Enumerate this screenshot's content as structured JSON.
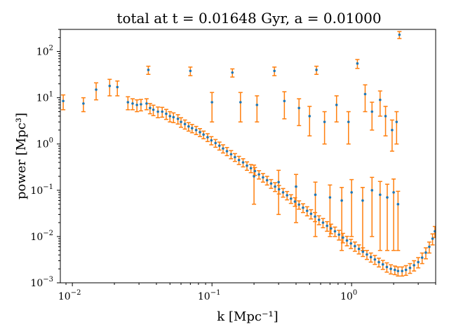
{
  "chart_data": {
    "type": "scatter",
    "title": "total at t = 0.01648 Gyr, a = 0.01000",
    "xlabel": "k [Mpc⁻¹]",
    "ylabel": "power [Mpc³]",
    "xscale": "log",
    "yscale": "log",
    "xlim": [
      0.0082,
      4.0
    ],
    "ylim": [
      0.001,
      300
    ],
    "grid": false,
    "legend": "none",
    "colors": {
      "points": "#1f77b4",
      "errorbars": "#ff7f0e"
    },
    "x_ticks": [
      {
        "base": "10",
        "exp": "−2",
        "value": 0.01
      },
      {
        "base": "10",
        "exp": "−1",
        "value": 0.1
      },
      {
        "base": "10",
        "exp": "0",
        "value": 1
      }
    ],
    "y_ticks": [
      {
        "base": "10",
        "exp": "−3",
        "value": 0.001
      },
      {
        "base": "10",
        "exp": "−2",
        "value": 0.01
      },
      {
        "base": "10",
        "exp": "−1",
        "value": 0.1
      },
      {
        "base": "10",
        "exp": "0",
        "value": 1
      },
      {
        "base": "10",
        "exp": "1",
        "value": 10
      },
      {
        "base": "10",
        "exp": "2",
        "value": 100
      }
    ],
    "series": [
      {
        "x": [
          0.0086,
          0.012,
          0.0148,
          0.0185,
          0.021,
          0.025,
          0.027,
          0.029,
          0.031,
          0.034,
          0.036,
          0.038,
          0.041,
          0.044,
          0.047,
          0.05,
          0.053,
          0.057,
          0.06,
          0.064,
          0.068,
          0.072,
          0.077,
          0.082,
          0.087,
          0.093,
          0.099,
          0.106,
          0.113,
          0.12,
          0.128,
          0.137,
          0.146,
          0.156,
          0.167,
          0.178,
          0.19,
          0.203,
          0.217,
          0.232,
          0.248,
          0.265,
          0.283,
          0.302,
          0.323,
          0.345,
          0.368,
          0.393,
          0.42,
          0.449,
          0.48,
          0.512,
          0.547,
          0.584,
          0.624,
          0.667,
          0.712,
          0.76,
          0.812,
          0.867,
          0.926,
          0.989,
          1.056,
          1.128,
          1.205,
          1.287,
          1.374,
          1.468,
          1.568,
          1.674,
          1.788,
          1.91,
          2.04,
          2.15,
          2.3,
          2.45,
          2.62,
          2.8,
          3.0,
          3.2,
          3.4,
          3.6,
          3.8,
          3.95
        ],
        "y": [
          8.5,
          7.5,
          15,
          18,
          17,
          8,
          7.5,
          7,
          7.2,
          7.5,
          6,
          5.5,
          5,
          5,
          4.5,
          4,
          3.8,
          3.5,
          3.0,
          2.7,
          2.4,
          2.2,
          2.0,
          1.8,
          1.6,
          1.4,
          1.2,
          1.05,
          0.92,
          0.8,
          0.7,
          0.6,
          0.52,
          0.45,
          0.4,
          0.34,
          0.3,
          0.26,
          0.22,
          0.19,
          0.165,
          0.14,
          0.12,
          0.105,
          0.09,
          0.078,
          0.066,
          0.057,
          0.049,
          0.042,
          0.036,
          0.031,
          0.027,
          0.023,
          0.02,
          0.017,
          0.015,
          0.013,
          0.011,
          0.0095,
          0.0082,
          0.0071,
          0.0062,
          0.0054,
          0.0047,
          0.0041,
          0.0036,
          0.0032,
          0.0028,
          0.0025,
          0.0022,
          0.002,
          0.0019,
          0.0018,
          0.0018,
          0.0019,
          0.0021,
          0.0024,
          0.0028,
          0.0035,
          0.0045,
          0.006,
          0.009,
          0.013
        ],
        "yerr_low": [
          3,
          2.5,
          6,
          7,
          6,
          2.5,
          2,
          2,
          2,
          2,
          1.5,
          1.4,
          1.3,
          1.2,
          1.1,
          1.0,
          0.9,
          0.8,
          0.7,
          0.6,
          0.5,
          0.45,
          0.4,
          0.35,
          0.3,
          0.27,
          0.24,
          0.2,
          0.18,
          0.16,
          0.14,
          0.12,
          0.1,
          0.09,
          0.08,
          0.07,
          0.06,
          0.05,
          0.045,
          0.04,
          0.035,
          0.03,
          0.026,
          0.022,
          0.019,
          0.016,
          0.014,
          0.012,
          0.01,
          0.009,
          0.008,
          0.007,
          0.006,
          0.005,
          0.0045,
          0.004,
          0.0035,
          0.003,
          0.0026,
          0.0022,
          0.0019,
          0.0016,
          0.0014,
          0.0012,
          0.001,
          0.0009,
          0.0008,
          0.0007,
          0.0006,
          0.00055,
          0.0005,
          0.00045,
          0.0004,
          0.0004,
          0.0004,
          0.00045,
          0.0005,
          0.0006,
          0.0007,
          0.0009,
          0.0012,
          0.0016,
          0.0024,
          0.0035
        ],
        "yerr_high": [
          3,
          2.5,
          6,
          7,
          6,
          2.5,
          2,
          2,
          2,
          2,
          1.5,
          1.4,
          1.3,
          1.2,
          1.1,
          1.0,
          0.9,
          0.8,
          0.7,
          0.6,
          0.5,
          0.45,
          0.4,
          0.35,
          0.3,
          0.27,
          0.24,
          0.2,
          0.18,
          0.16,
          0.14,
          0.12,
          0.1,
          0.09,
          0.08,
          0.07,
          0.06,
          0.05,
          0.045,
          0.04,
          0.035,
          0.03,
          0.026,
          0.022,
          0.019,
          0.016,
          0.014,
          0.012,
          0.01,
          0.009,
          0.008,
          0.007,
          0.006,
          0.005,
          0.0045,
          0.004,
          0.0035,
          0.003,
          0.0026,
          0.0022,
          0.0019,
          0.0016,
          0.0014,
          0.0012,
          0.001,
          0.0009,
          0.0008,
          0.0007,
          0.0006,
          0.00055,
          0.0005,
          0.00045,
          0.0004,
          0.0004,
          0.0004,
          0.00045,
          0.0005,
          0.0006,
          0.0007,
          0.0009,
          0.0012,
          0.0016,
          0.0024,
          0.0035
        ]
      },
      {
        "x": [
          0.035,
          0.07,
          0.14,
          0.28,
          0.56,
          1.1,
          2.2,
          0.1,
          0.16,
          0.21,
          0.33,
          0.42,
          0.5,
          0.64,
          0.78,
          0.95,
          1.25,
          1.4,
          1.6,
          1.75,
          1.95,
          2.1
        ],
        "y": [
          40,
          38,
          35,
          38,
          40,
          55,
          230,
          8,
          8,
          7,
          8.5,
          6,
          4,
          3,
          7,
          3,
          12,
          5,
          9,
          4,
          2,
          3
        ],
        "yerr_low": [
          8,
          8,
          7,
          8,
          8,
          12,
          40,
          5,
          5,
          4,
          5,
          3.5,
          2.5,
          2,
          4,
          2,
          7,
          3,
          5,
          2.5,
          1.3,
          2
        ],
        "yerr_high": [
          8,
          8,
          7,
          8,
          8,
          12,
          40,
          5,
          5,
          4,
          5,
          3.5,
          2.5,
          2,
          4,
          2,
          7,
          3,
          5,
          2.5,
          1.3,
          2
        ]
      },
      {
        "x": [
          0.2,
          0.3,
          0.4,
          0.55,
          0.7,
          0.85,
          1.0,
          1.2,
          1.4,
          1.6,
          1.8,
          2.0,
          2.15
        ],
        "y": [
          0.2,
          0.15,
          0.12,
          0.08,
          0.07,
          0.06,
          0.09,
          0.06,
          0.1,
          0.08,
          0.07,
          0.09,
          0.05
        ],
        "yerr_low": [
          0.15,
          0.12,
          0.1,
          0.07,
          0.06,
          0.055,
          0.08,
          0.055,
          0.09,
          0.075,
          0.065,
          0.085,
          0.045
        ],
        "yerr_high": [
          0.15,
          0.12,
          0.1,
          0.07,
          0.06,
          0.055,
          0.08,
          0.055,
          0.09,
          0.075,
          0.065,
          0.085,
          0.045
        ]
      }
    ]
  }
}
